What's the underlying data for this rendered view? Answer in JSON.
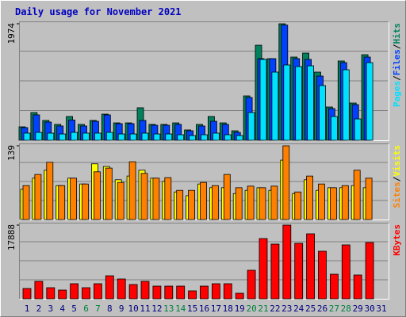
{
  "chart_data": [
    {
      "type": "bar",
      "title": "Daily usage for November 2021",
      "separator": "/",
      "ylim": [
        0,
        1974
      ],
      "yticks": [
        1974
      ],
      "series": [
        {
          "name": "Hits",
          "color": "#00805c",
          "values": [
            228,
            470,
            336,
            269,
            403,
            269,
            336,
            443,
            295,
            295,
            551,
            269,
            269,
            295,
            175,
            269,
            403,
            295,
            161,
            752,
            1611,
            1383,
            1974,
            1410,
            1477,
            1155,
            564,
            1343,
            631,
            1450,
            0
          ]
        },
        {
          "name": "Files",
          "color": "#0040ff",
          "values": [
            215,
            430,
            309,
            242,
            343,
            242,
            322,
            430,
            282,
            282,
            336,
            255,
            255,
            269,
            161,
            242,
            322,
            269,
            134,
            725,
            1383,
            1383,
            1953,
            1383,
            1370,
            1088,
            537,
            1316,
            604,
            1410,
            0
          ]
        },
        {
          "name": "Pages",
          "color": "#00e0ff",
          "values": [
            121,
            134,
            121,
            107,
            134,
            121,
            121,
            134,
            107,
            107,
            121,
            107,
            107,
            94,
            80,
            94,
            121,
            94,
            80,
            470,
            1370,
            1155,
            1276,
            1249,
            1262,
            927,
            403,
            1195,
            362,
            1316,
            0
          ]
        }
      ]
    },
    {
      "type": "bar",
      "separator": "/",
      "ylim": [
        0,
        139
      ],
      "yticks": [
        139
      ],
      "series": [
        {
          "name": "Visits",
          "color": "#ffff00",
          "values": [
            57,
            78,
            93,
            64,
            78,
            67,
            105,
            100,
            75,
            82,
            93,
            78,
            72,
            52,
            45,
            67,
            60,
            60,
            49,
            55,
            60,
            55,
            112,
            49,
            75,
            55,
            60,
            60,
            64,
            60,
            0
          ]
        },
        {
          "name": "Sites",
          "color": "#ff8000",
          "values": [
            64,
            85,
            108,
            64,
            78,
            67,
            90,
            97,
            70,
            109,
            87,
            78,
            79,
            55,
            55,
            70,
            64,
            85,
            60,
            63,
            60,
            63,
            139,
            52,
            82,
            67,
            60,
            64,
            93,
            78,
            0
          ]
        }
      ]
    },
    {
      "type": "bar",
      "ylim": [
        0,
        17888
      ],
      "yticks": [
        17888
      ],
      "categories": [
        "1",
        "2",
        "3",
        "4",
        "5",
        "6",
        "7",
        "8",
        "9",
        "10",
        "11",
        "12",
        "13",
        "14",
        "15",
        "16",
        "17",
        "18",
        "19",
        "20",
        "21",
        "22",
        "23",
        "24",
        "25",
        "26",
        "27",
        "28",
        "29",
        "30",
        "31"
      ],
      "category_colors": [
        "#000080",
        "#000080",
        "#000080",
        "#000080",
        "#000080",
        "#008040",
        "#008040",
        "#000080",
        "#000080",
        "#000080",
        "#000080",
        "#000080",
        "#008040",
        "#008040",
        "#000080",
        "#000080",
        "#000080",
        "#000080",
        "#000080",
        "#008040",
        "#008040",
        "#000080",
        "#000080",
        "#000080",
        "#000080",
        "#000080",
        "#008040",
        "#008040",
        "#000080",
        "#000080",
        "#000080"
      ],
      "series": [
        {
          "name": "KBytes",
          "color": "#ff0000",
          "values": [
            2500,
            4231,
            2692,
            2115,
            3654,
            2692,
            3654,
            5577,
            4808,
            3462,
            4231,
            3077,
            3077,
            3077,
            1923,
            3077,
            3654,
            3654,
            1346,
            6923,
            14615,
            13269,
            17888,
            13462,
            15769,
            11538,
            5962,
            13077,
            5769,
            13654,
            0
          ]
        }
      ]
    }
  ]
}
